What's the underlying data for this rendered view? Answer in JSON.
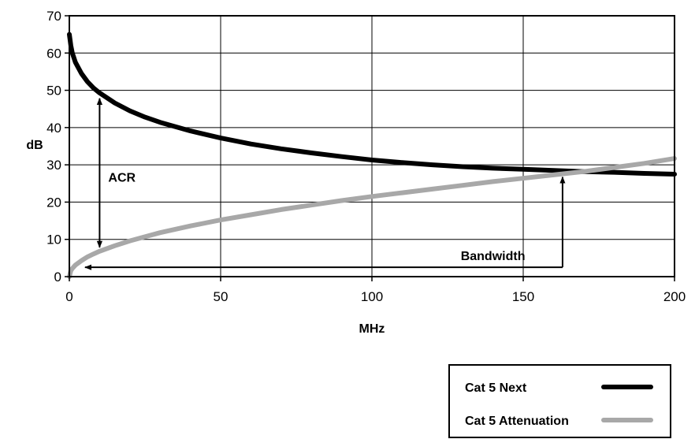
{
  "chart_data": {
    "type": "line",
    "xlabel": "MHz",
    "ylabel": "dB",
    "xlim": [
      0,
      200
    ],
    "ylim": [
      0,
      70
    ],
    "xticks": [
      0,
      50,
      100,
      150,
      200
    ],
    "yticks": [
      0,
      10,
      20,
      30,
      40,
      50,
      60,
      70
    ],
    "grid": true,
    "legend_position": "bottom-right",
    "series": [
      {
        "name": "Cat 5 Next",
        "color": "#000000",
        "x": [
          0,
          0.5,
          1,
          2,
          4,
          6,
          8,
          10,
          15,
          20,
          25,
          30,
          40,
          50,
          60,
          70,
          80,
          90,
          100,
          110,
          120,
          130,
          140,
          150,
          160,
          170,
          180,
          190,
          200
        ],
        "y": [
          65,
          62,
          60,
          57.5,
          54.5,
          52.3,
          50.6,
          49.3,
          46.6,
          44.5,
          42.8,
          41.4,
          39.1,
          37.2,
          35.6,
          34.3,
          33.2,
          32.2,
          31.3,
          30.6,
          30.0,
          29.5,
          29.1,
          28.8,
          28.5,
          28.2,
          28.0,
          27.7,
          27.5
        ]
      },
      {
        "name": "Cat 5 Attenuation",
        "color": "#a8a8a8",
        "x": [
          0,
          0.5,
          1,
          2,
          4,
          6,
          8,
          10,
          15,
          20,
          25,
          30,
          40,
          50,
          60,
          70,
          80,
          90,
          100,
          110,
          120,
          130,
          140,
          150,
          160,
          170,
          180,
          190,
          200
        ],
        "y": [
          0,
          1.6,
          2.2,
          3.1,
          4.3,
          5.3,
          6.1,
          6.8,
          8.3,
          9.6,
          10.7,
          11.8,
          13.6,
          15.2,
          16.6,
          18.0,
          19.2,
          20.4,
          21.5,
          22.5,
          23.5,
          24.5,
          25.5,
          26.4,
          27.3,
          28.2,
          29.3,
          30.4,
          31.7
        ]
      }
    ],
    "annotations": [
      {
        "label": "ACR",
        "x": 10,
        "y_from": 49.3,
        "y_to": 6.8
      },
      {
        "label": "Bandwidth",
        "x_from": 163,
        "x_to": 0.5,
        "y_from": 28,
        "y_to": 2.5
      }
    ]
  }
}
